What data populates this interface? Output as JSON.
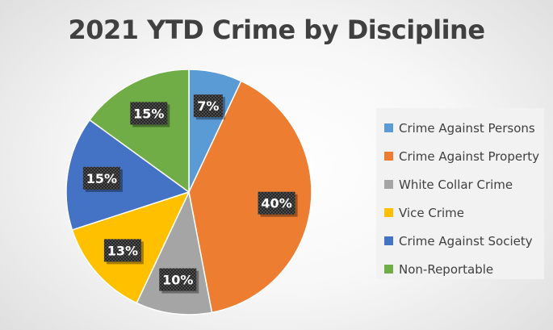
{
  "chart_data": {
    "type": "pie",
    "title": "2021 YTD Crime by Discipline",
    "legend_position": "right",
    "slices": [
      {
        "name": "Crime Against Persons",
        "value": 7,
        "label": "7%",
        "color": "#5b9bd5"
      },
      {
        "name": "Crime Against Property",
        "value": 40,
        "label": "40%",
        "color": "#ed7d31"
      },
      {
        "name": "White Collar Crime",
        "value": 10,
        "label": "10%",
        "color": "#a5a5a5"
      },
      {
        "name": "Vice Crime",
        "value": 13,
        "label": "13%",
        "color": "#ffc000"
      },
      {
        "name": "Crime Against Society",
        "value": 15,
        "label": "15%",
        "color": "#4472c4"
      },
      {
        "name": "Non-Reportable",
        "value": 15,
        "label": "15%",
        "color": "#70ad47"
      }
    ]
  }
}
